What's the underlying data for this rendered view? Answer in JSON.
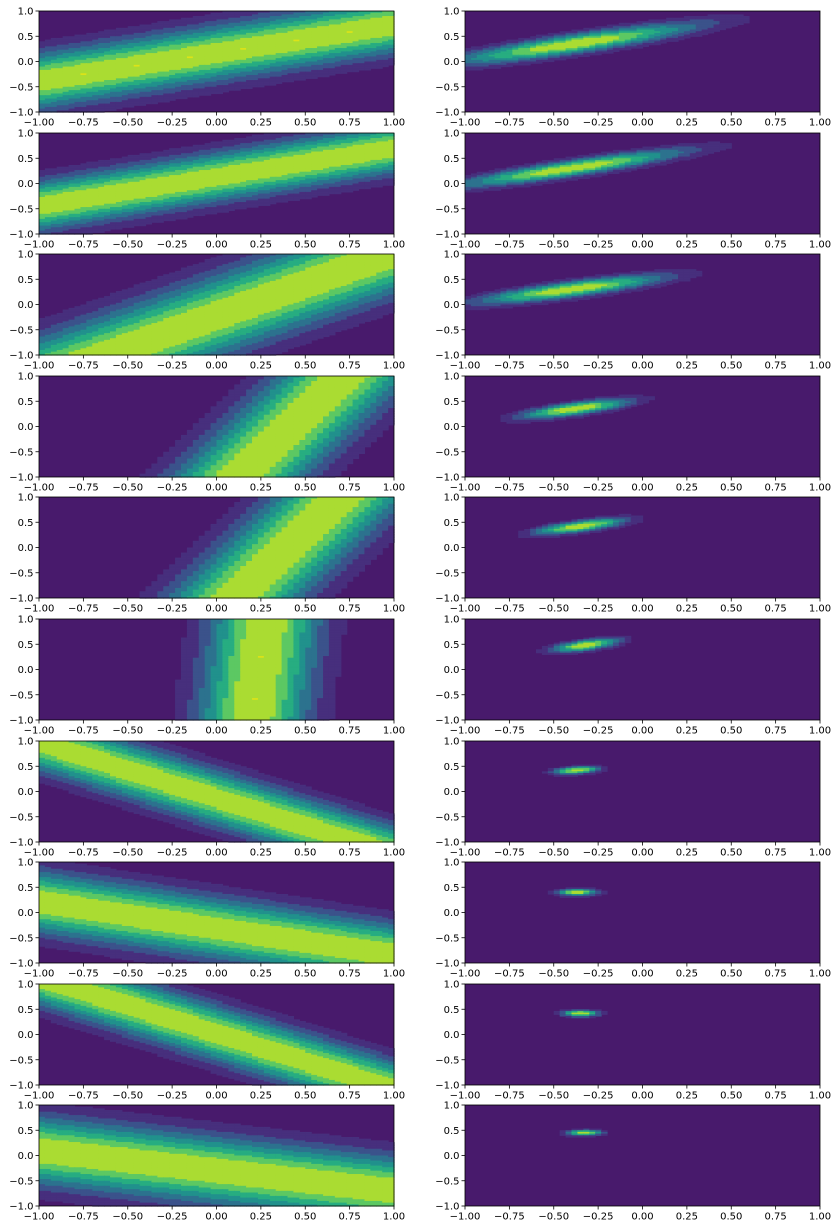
{
  "figure": {
    "rows": 10,
    "cols": 2,
    "colormap": "viridis",
    "levels": 8
  },
  "chart_data": [
    {
      "panel": "r1c1",
      "type": "filled-contour",
      "model": "band",
      "params": {
        "a": 1.0,
        "b": -1.8,
        "c": -0.3,
        "s": 0.34
      },
      "xlim": [
        -1,
        1
      ],
      "ylim": [
        -1,
        1
      ],
      "xticks": [
        "-1.00",
        "-0.75",
        "-0.50",
        "-0.25",
        "0.00",
        "0.25",
        "0.50",
        "0.75",
        "1.00"
      ],
      "yticks": [
        "-1.0",
        "-0.5",
        "0.0",
        "0.5",
        "1.0"
      ],
      "title": "",
      "xlabel": "",
      "ylabel": ""
    },
    {
      "panel": "r1c2",
      "type": "filled-contour",
      "model": "gaussian",
      "params": {
        "mx": -0.38,
        "my": 0.35,
        "su": 0.55,
        "sv": 0.12,
        "theta": 0.5
      },
      "xlim": [
        -1,
        1
      ],
      "ylim": [
        -1,
        1
      ],
      "xticks": [
        "-1.00",
        "-0.75",
        "-0.50",
        "-0.25",
        "0.00",
        "0.25",
        "0.50",
        "0.75",
        "1.00"
      ],
      "yticks": [
        "-1.0",
        "-0.5",
        "0.0",
        "0.5",
        "1.0"
      ],
      "title": "",
      "xlabel": "",
      "ylabel": ""
    },
    {
      "panel": "r2c1",
      "type": "filled-contour",
      "model": "band",
      "params": {
        "a": 1.0,
        "b": -1.75,
        "c": -0.22,
        "s": 0.3
      },
      "xlim": [
        -1,
        1
      ],
      "ylim": [
        -1,
        1
      ],
      "xticks": [
        "-1.00",
        "-0.75",
        "-0.50",
        "-0.25",
        "0.00",
        "0.25",
        "0.50",
        "0.75",
        "1.00"
      ],
      "yticks": [
        "-1.0",
        "-0.5",
        "0.0",
        "0.5",
        "1.0"
      ],
      "title": "",
      "xlabel": "",
      "ylabel": ""
    },
    {
      "panel": "r2c2",
      "type": "filled-contour",
      "model": "gaussian",
      "params": {
        "mx": -0.4,
        "my": 0.3,
        "su": 0.5,
        "sv": 0.1,
        "theta": 0.5
      },
      "xlim": [
        -1,
        1
      ],
      "ylim": [
        -1,
        1
      ],
      "xticks": [
        "-1.00",
        "-0.75",
        "-0.50",
        "-0.25",
        "0.00",
        "0.25",
        "0.50",
        "0.75",
        "1.00"
      ],
      "yticks": [
        "-1.0",
        "-0.5",
        "0.0",
        "0.5",
        "1.0"
      ],
      "title": "",
      "xlabel": "",
      "ylabel": ""
    },
    {
      "panel": "r3c1",
      "type": "filled-contour",
      "model": "band",
      "params": {
        "a": 1.0,
        "b": -0.8,
        "c": 0.18,
        "s": 0.36
      },
      "xlim": [
        -1,
        1
      ],
      "ylim": [
        -1,
        1
      ],
      "xticks": [
        "-1.00",
        "-0.75",
        "-0.50",
        "-0.25",
        "0.00",
        "0.25",
        "0.50",
        "0.75",
        "1.00"
      ],
      "yticks": [
        "-1.0",
        "-0.5",
        "0.0",
        "0.5",
        "1.0"
      ],
      "title": "",
      "xlabel": "",
      "ylabel": ""
    },
    {
      "panel": "r3c2",
      "type": "filled-contour",
      "model": "gaussian",
      "params": {
        "mx": -0.4,
        "my": 0.3,
        "su": 0.4,
        "sv": 0.1,
        "theta": 0.45
      },
      "xlim": [
        -1,
        1
      ],
      "ylim": [
        -1,
        1
      ],
      "xticks": [
        "-1.00",
        "-0.75",
        "-0.50",
        "-0.25",
        "0.00",
        "0.25",
        "0.50",
        "0.75",
        "1.00"
      ],
      "yticks": [
        "-1.0",
        "-0.5",
        "0.0",
        "0.5",
        "1.0"
      ],
      "title": "",
      "xlabel": "",
      "ylabel": ""
    },
    {
      "panel": "r4c1",
      "type": "filled-contour",
      "model": "band",
      "params": {
        "a": 1.0,
        "b": -0.3,
        "c": 0.42,
        "s": 0.26
      },
      "xlim": [
        -1,
        1
      ],
      "ylim": [
        -1,
        1
      ],
      "xticks": [
        "-1.00",
        "-0.75",
        "-0.50",
        "-0.25",
        "0.00",
        "0.25",
        "0.50",
        "0.75",
        "1.00"
      ],
      "yticks": [
        "-1.0",
        "-0.5",
        "0.0",
        "0.5",
        "1.0"
      ],
      "title": "",
      "xlabel": "",
      "ylabel": ""
    },
    {
      "panel": "r4c2",
      "type": "filled-contour",
      "model": "gaussian",
      "params": {
        "mx": -0.38,
        "my": 0.35,
        "su": 0.24,
        "sv": 0.08,
        "theta": 0.5
      },
      "xlim": [
        -1,
        1
      ],
      "ylim": [
        -1,
        1
      ],
      "xticks": [
        "-1.00",
        "-0.75",
        "-0.50",
        "-0.25",
        "0.00",
        "0.25",
        "0.50",
        "0.75",
        "1.00"
      ],
      "yticks": [
        "-1.0",
        "-0.5",
        "0.0",
        "0.5",
        "1.0"
      ],
      "title": "",
      "xlabel": "",
      "ylabel": ""
    },
    {
      "panel": "r5c1",
      "type": "filled-contour",
      "model": "band",
      "params": {
        "a": 1.0,
        "b": -0.3,
        "c": 0.4,
        "s": 0.26
      },
      "xlim": [
        -1,
        1
      ],
      "ylim": [
        -1,
        1
      ],
      "xticks": [
        "-1.00",
        "-0.75",
        "-0.50",
        "-0.25",
        "0.00",
        "0.25",
        "0.50",
        "0.75",
        "1.00"
      ],
      "yticks": [
        "-1.0",
        "-0.5",
        "0.0",
        "0.5",
        "1.0"
      ],
      "title": "",
      "xlabel": "",
      "ylabel": ""
    },
    {
      "panel": "r5c2",
      "type": "filled-contour",
      "model": "gaussian",
      "params": {
        "mx": -0.35,
        "my": 0.42,
        "su": 0.2,
        "sv": 0.07,
        "theta": 0.5
      },
      "xlim": [
        -1,
        1
      ],
      "ylim": [
        -1,
        1
      ],
      "xticks": [
        "-1.00",
        "-0.75",
        "-0.50",
        "-0.25",
        "0.00",
        "0.25",
        "0.50",
        "0.75",
        "1.00"
      ],
      "yticks": [
        "-1.0",
        "-0.5",
        "0.0",
        "0.5",
        "1.0"
      ],
      "title": "",
      "xlabel": "",
      "ylabel": ""
    },
    {
      "panel": "r6c1",
      "type": "filled-contour",
      "model": "band",
      "params": {
        "a": 1.0,
        "b": -0.04,
        "c": 0.24,
        "s": 0.22
      },
      "xlim": [
        -1,
        1
      ],
      "ylim": [
        -1,
        1
      ],
      "xticks": [
        "-1.00",
        "-0.75",
        "-0.50",
        "-0.25",
        "0.00",
        "0.25",
        "0.50",
        "0.75",
        "1.00"
      ],
      "yticks": [
        "-1.0",
        "-0.5",
        "0.0",
        "0.5",
        "1.0"
      ],
      "title": "",
      "xlabel": "",
      "ylabel": ""
    },
    {
      "panel": "r6c2",
      "type": "filled-contour",
      "model": "gaussian",
      "params": {
        "mx": -0.32,
        "my": 0.48,
        "su": 0.15,
        "sv": 0.065,
        "theta": 0.55
      },
      "xlim": [
        -1,
        1
      ],
      "ylim": [
        -1,
        1
      ],
      "xticks": [
        "-1.00",
        "-0.75",
        "-0.50",
        "-0.25",
        "0.00",
        "0.25",
        "0.50",
        "0.75",
        "1.00"
      ],
      "yticks": [
        "-1.0",
        "-0.5",
        "0.0",
        "0.5",
        "1.0"
      ],
      "title": "",
      "xlabel": "",
      "ylabel": ""
    },
    {
      "panel": "r7c1",
      "type": "filled-contour",
      "model": "band",
      "params": {
        "a": 1.0,
        "b": 0.9,
        "c": -0.12,
        "s": 0.26
      },
      "xlim": [
        -1,
        1
      ],
      "ylim": [
        -1,
        1
      ],
      "xticks": [
        "-1.00",
        "-0.75",
        "-0.50",
        "-0.25",
        "0.00",
        "0.25",
        "0.50",
        "0.75",
        "1.00"
      ],
      "yticks": [
        "-1.0",
        "-0.5",
        "0.0",
        "0.5",
        "1.0"
      ],
      "title": "",
      "xlabel": "",
      "ylabel": ""
    },
    {
      "panel": "r7c2",
      "type": "filled-contour",
      "model": "gaussian",
      "params": {
        "mx": -0.37,
        "my": 0.42,
        "su": 0.095,
        "sv": 0.05,
        "theta": 0.3
      },
      "xlim": [
        -1,
        1
      ],
      "ylim": [
        -1,
        1
      ],
      "xticks": [
        "-1.00",
        "-0.75",
        "-0.50",
        "-0.25",
        "0.00",
        "0.25",
        "0.50",
        "0.75",
        "1.00"
      ],
      "yticks": [
        "-1.0",
        "-0.5",
        "0.0",
        "0.5",
        "1.0"
      ],
      "title": "",
      "xlabel": "",
      "ylabel": ""
    },
    {
      "panel": "r8c1",
      "type": "filled-contour",
      "model": "band",
      "params": {
        "a": 1.0,
        "b": 1.9,
        "c": -0.6,
        "s": 0.38
      },
      "xlim": [
        -1,
        1
      ],
      "ylim": [
        -1,
        1
      ],
      "xticks": [
        "-1.00",
        "-0.75",
        "-0.50",
        "-0.25",
        "0.00",
        "0.25",
        "0.50",
        "0.75",
        "1.00"
      ],
      "yticks": [
        "-1.0",
        "-0.5",
        "0.0",
        "0.5",
        "1.0"
      ],
      "title": "",
      "xlabel": "",
      "ylabel": ""
    },
    {
      "panel": "r8c2",
      "type": "filled-contour",
      "model": "gaussian",
      "params": {
        "mx": -0.37,
        "my": 0.4,
        "su": 0.08,
        "sv": 0.045,
        "theta": 0.1
      },
      "xlim": [
        -1,
        1
      ],
      "ylim": [
        -1,
        1
      ],
      "xticks": [
        "-1.00",
        "-0.75",
        "-0.50",
        "-0.25",
        "0.00",
        "0.25",
        "0.50",
        "0.75",
        "1.00"
      ],
      "yticks": [
        "-1.0",
        "-0.5",
        "0.0",
        "0.5",
        "1.0"
      ],
      "title": "",
      "xlabel": "",
      "ylabel": ""
    },
    {
      "panel": "r9c1",
      "type": "filled-contour",
      "model": "band",
      "params": {
        "a": 1.0,
        "b": 0.9,
        "c": 0.02,
        "s": 0.26
      },
      "xlim": [
        -1,
        1
      ],
      "ylim": [
        -1,
        1
      ],
      "xticks": [
        "-1.00",
        "-0.75",
        "-0.50",
        "-0.25",
        "0.00",
        "0.25",
        "0.50",
        "0.75",
        "1.00"
      ],
      "yticks": [
        "-1.0",
        "-0.5",
        "0.0",
        "0.5",
        "1.0"
      ],
      "title": "",
      "xlabel": "",
      "ylabel": ""
    },
    {
      "panel": "r9c2",
      "type": "filled-contour",
      "model": "gaussian",
      "params": {
        "mx": -0.35,
        "my": 0.42,
        "su": 0.07,
        "sv": 0.045,
        "theta": 0.0
      },
      "xlim": [
        -1,
        1
      ],
      "ylim": [
        -1,
        1
      ],
      "xticks": [
        "-1.00",
        "-0.75",
        "-0.50",
        "-0.25",
        "0.00",
        "0.25",
        "0.50",
        "0.75",
        "1.00"
      ],
      "yticks": [
        "-1.0",
        "-0.5",
        "0.0",
        "0.5",
        "1.0"
      ],
      "title": "",
      "xlabel": "",
      "ylabel": ""
    },
    {
      "panel": "r10c1",
      "type": "filled-contour",
      "model": "band",
      "params": {
        "a": 1.0,
        "b": 2.5,
        "c": -0.75,
        "s": 0.44
      },
      "xlim": [
        -1,
        1
      ],
      "ylim": [
        -1,
        1
      ],
      "xticks": [
        "-1.00",
        "-0.75",
        "-0.50",
        "-0.25",
        "0.00",
        "0.25",
        "0.50",
        "0.75",
        "1.00"
      ],
      "yticks": [
        "-1.0",
        "-0.5",
        "0.0",
        "0.5",
        "1.0"
      ],
      "title": "",
      "xlabel": "",
      "ylabel": ""
    },
    {
      "panel": "r10c2",
      "type": "filled-contour",
      "model": "gaussian",
      "params": {
        "mx": -0.33,
        "my": 0.45,
        "su": 0.07,
        "sv": 0.04,
        "theta": 0.05
      },
      "xlim": [
        -1,
        1
      ],
      "ylim": [
        -1,
        1
      ],
      "xticks": [
        "-1.00",
        "-0.75",
        "-0.50",
        "-0.25",
        "0.00",
        "0.25",
        "0.50",
        "0.75",
        "1.00"
      ],
      "yticks": [
        "-1.0",
        "-0.5",
        "0.0",
        "0.5",
        "1.0"
      ],
      "title": "",
      "xlabel": "",
      "ylabel": ""
    }
  ]
}
